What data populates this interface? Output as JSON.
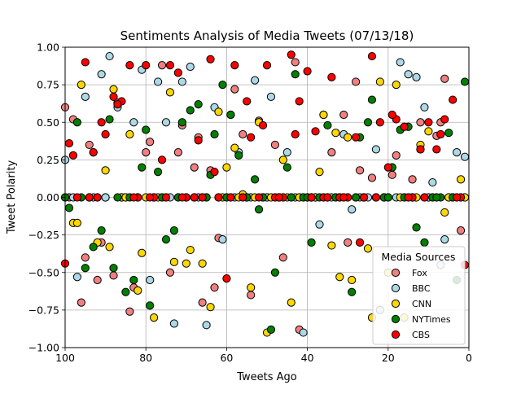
{
  "chart_data": {
    "type": "scatter",
    "title": "Sentiments Analysis of Media Tweets (07/13/18)",
    "xlabel": "Tweets Ago",
    "ylabel": "Tweet Polarity",
    "xlim": [
      100,
      0
    ],
    "ylim": [
      -1.0,
      1.0
    ],
    "x_inverted": true,
    "grid": true,
    "xticks": [
      100,
      80,
      60,
      40,
      20,
      0
    ],
    "xtick_labels": [
      "100",
      "80",
      "60",
      "40",
      "20",
      "0"
    ],
    "yticks": [
      -1.0,
      -0.75,
      -0.5,
      -0.25,
      0.0,
      0.25,
      0.5,
      0.75,
      1.0
    ],
    "ytick_labels": [
      "−1.00",
      "−0.75",
      "−0.50",
      "−0.25",
      "0.00",
      "0.25",
      "0.50",
      "0.75",
      "1.00"
    ],
    "legend": {
      "title": "Media Sources",
      "placement": "lower-right"
    },
    "series": [
      {
        "name": "Fox",
        "color": "#f08080",
        "x": [
          100,
          98,
          96,
          94,
          92,
          90,
          88,
          86,
          84,
          82,
          80,
          78,
          76,
          74,
          72,
          70,
          68,
          66,
          64,
          62,
          60,
          58,
          56,
          54,
          52,
          50,
          48,
          46,
          44,
          42,
          40,
          38,
          36,
          34,
          32,
          30,
          28,
          26,
          24,
          22,
          20,
          18,
          16,
          14,
          12,
          10,
          8,
          6,
          4,
          2,
          1,
          99,
          95,
          91,
          87,
          83,
          79,
          75,
          71,
          67,
          63,
          59,
          55,
          51,
          47,
          43,
          39,
          35,
          31,
          27,
          23,
          19,
          15,
          11,
          7,
          3
        ],
        "y": [
          0.6,
          0.52,
          -0.7,
          0.35,
          -0.55,
          0.0,
          -0.52,
          0.0,
          -0.76,
          0.0,
          0.3,
          0.0,
          0.88,
          -0.5,
          0.3,
          0.0,
          0.2,
          -0.7,
          0.18,
          -0.27,
          0.0,
          0.72,
          0.42,
          -0.65,
          0.51,
          0.0,
          0.35,
          -0.4,
          0.0,
          -0.88,
          0.0,
          0.0,
          0.55,
          0.3,
          0.0,
          -0.3,
          0.77,
          0.0,
          0.13,
          -0.75,
          0.0,
          0.28,
          0.0,
          0.12,
          0.5,
          0.0,
          0.41,
          0.79,
          0.0,
          -0.22,
          0.0,
          0.0,
          -0.4,
          -0.3,
          0.63,
          -0.6,
          0.37,
          0.0,
          0.48,
          0.4,
          -0.6,
          0.0,
          0.0,
          0.0,
          0.0,
          0.9,
          0.0,
          0.0,
          0.55,
          0.18,
          0.0,
          0.15,
          0.0,
          0.0,
          0.5,
          0.0
        ]
      },
      {
        "name": "BBC",
        "color": "#add8e6",
        "x": [
          100,
          97,
          95,
          93,
          91,
          89,
          87,
          85,
          83,
          81,
          79,
          77,
          75,
          73,
          71,
          69,
          67,
          65,
          63,
          61,
          59,
          57,
          55,
          53,
          51,
          49,
          47,
          45,
          43,
          41,
          39,
          37,
          35,
          33,
          31,
          29,
          27,
          25,
          23,
          21,
          19,
          17,
          15,
          13,
          11,
          9,
          7,
          5,
          3,
          1,
          98,
          94,
          90,
          86,
          82,
          78,
          74,
          70,
          66,
          62,
          58,
          54,
          50,
          46,
          42,
          38,
          34,
          30,
          26,
          22,
          18,
          14,
          10,
          6,
          2
        ],
        "y": [
          0.25,
          -0.53,
          0.67,
          0.0,
          0.82,
          0.94,
          0.6,
          0.0,
          0.5,
          0.85,
          -0.55,
          0.77,
          0.5,
          -0.84,
          0.77,
          0.87,
          0.0,
          -0.85,
          0.6,
          -0.28,
          0.55,
          0.3,
          0.0,
          0.78,
          0.0,
          0.67,
          0.0,
          0.3,
          0.0,
          -0.9,
          0.0,
          -0.18,
          0.0,
          0.0,
          0.42,
          -0.08,
          0.0,
          0.0,
          0.32,
          0.0,
          0.2,
          0.9,
          0.82,
          0.8,
          0.6,
          0.1,
          -0.45,
          0.0,
          0.3,
          0.27,
          0.0,
          0.0,
          0.0,
          0.0,
          0.0,
          0.0,
          0.0,
          0.0,
          0.0,
          0.0,
          0.0,
          0.0,
          0.0,
          0.0,
          0.0,
          0.0,
          0.0,
          0.0,
          0.0,
          -0.75,
          0.0,
          0.0,
          0.0,
          -0.28,
          0.0
        ]
      },
      {
        "name": "CNN",
        "color": "#ffd700",
        "x": [
          100,
          98,
          96,
          94,
          92,
          90,
          88,
          86,
          84,
          82,
          80,
          78,
          76,
          74,
          72,
          70,
          68,
          66,
          64,
          62,
          60,
          58,
          56,
          54,
          52,
          50,
          48,
          46,
          44,
          42,
          40,
          38,
          36,
          34,
          32,
          30,
          28,
          26,
          24,
          22,
          20,
          18,
          16,
          14,
          12,
          10,
          8,
          6,
          4,
          2,
          1,
          97,
          93,
          89,
          85,
          81,
          77,
          73,
          69,
          65,
          61,
          57,
          53,
          49,
          45,
          41,
          37,
          33,
          29,
          25,
          21,
          17,
          13,
          9,
          5
        ],
        "y": [
          0.0,
          -0.17,
          0.75,
          0.0,
          -0.3,
          0.18,
          0.72,
          0.0,
          0.42,
          -0.62,
          0.0,
          -0.8,
          0.0,
          0.7,
          0.0,
          -0.44,
          0.0,
          -0.44,
          -0.73,
          0.57,
          0.2,
          0.33,
          0.02,
          -0.6,
          0.5,
          -0.9,
          0.0,
          0.25,
          -0.7,
          0.0,
          0.0,
          0.0,
          0.55,
          -0.32,
          -0.53,
          0.4,
          0.0,
          0.0,
          -0.8,
          0.77,
          -0.5,
          0.75,
          -0.8,
          0.0,
          0.35,
          0.44,
          0.0,
          -0.1,
          0.0,
          0.12,
          0.0,
          -0.17,
          0.3,
          -0.33,
          0.0,
          -0.37,
          0.0,
          -0.43,
          -0.35,
          0.0,
          0.0,
          0.0,
          0.0,
          0.0,
          0.0,
          0.0,
          0.17,
          0.43,
          -0.55,
          -0.34,
          0.0,
          0.0,
          0.0,
          0.0,
          0.0
        ]
      },
      {
        "name": "NYTimes",
        "color": "#008000",
        "x": [
          99,
          97,
          95,
          93,
          91,
          89,
          87,
          85,
          83,
          81,
          79,
          77,
          75,
          73,
          71,
          69,
          67,
          65,
          63,
          61,
          59,
          57,
          55,
          53,
          51,
          49,
          47,
          45,
          43,
          41,
          39,
          37,
          35,
          33,
          31,
          29,
          27,
          25,
          23,
          21,
          19,
          17,
          15,
          13,
          11,
          9,
          7,
          5,
          3,
          1,
          100,
          96,
          92,
          88,
          84,
          80,
          76,
          72,
          68,
          64,
          60,
          56,
          52,
          48,
          44,
          40,
          36,
          32,
          28,
          24,
          20,
          16,
          12,
          8,
          4
        ],
        "y": [
          -0.07,
          0.5,
          -0.47,
          -0.33,
          -0.22,
          0.52,
          0.0,
          -0.63,
          -0.55,
          0.2,
          -0.72,
          0.17,
          -0.28,
          -0.22,
          0.5,
          0.58,
          0.62,
          0.0,
          0.42,
          0.75,
          0.55,
          0.28,
          0.0,
          0.12,
          0.0,
          -0.88,
          0.0,
          0.2,
          0.82,
          0.0,
          -0.3,
          0.0,
          0.48,
          0.0,
          0.0,
          -0.63,
          0.4,
          0.5,
          0.0,
          0.0,
          0.2,
          0.45,
          0.47,
          -0.2,
          -0.3,
          0.0,
          0.0,
          0.43,
          -0.55,
          0.77,
          0.0,
          0.0,
          0.0,
          -0.47,
          0.0,
          0.45,
          0.0,
          0.0,
          0.0,
          0.15,
          0.0,
          0.0,
          -0.08,
          -0.5,
          0.0,
          0.0,
          0.0,
          0.0,
          0.0,
          0.65,
          0.0,
          0.0,
          0.32,
          0.0,
          0.0
        ]
      },
      {
        "name": "CBS",
        "color": "#ff0000",
        "x": [
          100,
          99,
          98,
          95,
          93,
          92,
          90,
          88,
          86,
          84,
          82,
          80,
          78,
          76,
          74,
          72,
          70,
          68,
          66,
          64,
          62,
          60,
          58,
          56,
          54,
          52,
          50,
          48,
          46,
          44,
          42,
          40,
          38,
          36,
          34,
          32,
          30,
          28,
          26,
          24,
          22,
          20,
          18,
          16,
          14,
          12,
          10,
          8,
          6,
          4,
          2,
          1,
          97,
          94,
          91,
          87,
          83,
          79,
          75,
          71,
          67,
          63,
          59,
          55,
          51,
          47,
          43,
          39,
          35,
          31,
          27,
          23,
          19,
          15,
          11,
          7,
          3
        ],
        "y": [
          -0.44,
          0.36,
          0.28,
          0.9,
          0.3,
          0.0,
          0.42,
          0.67,
          0.64,
          0.88,
          0.0,
          0.88,
          0.0,
          0.25,
          0.88,
          0.83,
          0.0,
          0.0,
          0.0,
          0.92,
          0.0,
          -0.54,
          0.88,
          0.0,
          0.4,
          0.0,
          0.88,
          0.0,
          0.0,
          0.95,
          0.64,
          0.84,
          0.44,
          0.0,
          0.8,
          0.0,
          0.0,
          0.4,
          0.0,
          0.94,
          0.5,
          0.2,
          0.52,
          0.47,
          0.0,
          0.32,
          0.5,
          0.32,
          0.52,
          0.65,
          0.0,
          -0.45,
          0.0,
          0.0,
          0.5,
          0.62,
          0.0,
          0.0,
          0.0,
          0.0,
          0.38,
          0.17,
          0.0,
          0.64,
          0.48,
          0.0,
          0.42,
          0.0,
          0.0,
          0.0,
          -0.3,
          0.0,
          0.55,
          0.0,
          0.0,
          0.42,
          0.0
        ]
      }
    ]
  }
}
